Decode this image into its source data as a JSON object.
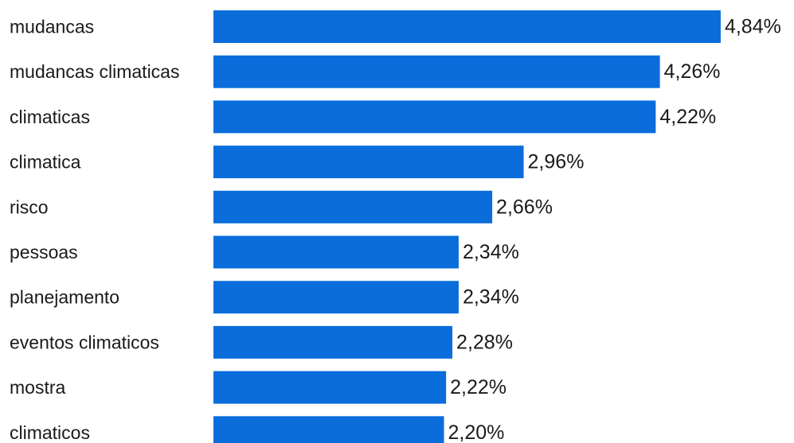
{
  "chart_data": {
    "type": "bar",
    "orientation": "horizontal",
    "categories": [
      "mudancas",
      "mudancas climaticas",
      "climaticas",
      "climatica",
      "risco",
      "pessoas",
      "planejamento",
      "eventos climaticos",
      "mostra",
      "climaticos"
    ],
    "values": [
      4.84,
      4.26,
      4.22,
      2.96,
      2.66,
      2.34,
      2.34,
      2.28,
      2.22,
      2.2
    ],
    "value_labels": [
      "4,84%",
      "4,26%",
      "4,22%",
      "2,96%",
      "2,66%",
      "2,34%",
      "2,34%",
      "2,28%",
      "2,22%",
      "2,20%"
    ],
    "title": "",
    "xlabel": "",
    "ylabel": "",
    "bar_color": "#0a6ddb",
    "grid": false,
    "legend": "none"
  }
}
